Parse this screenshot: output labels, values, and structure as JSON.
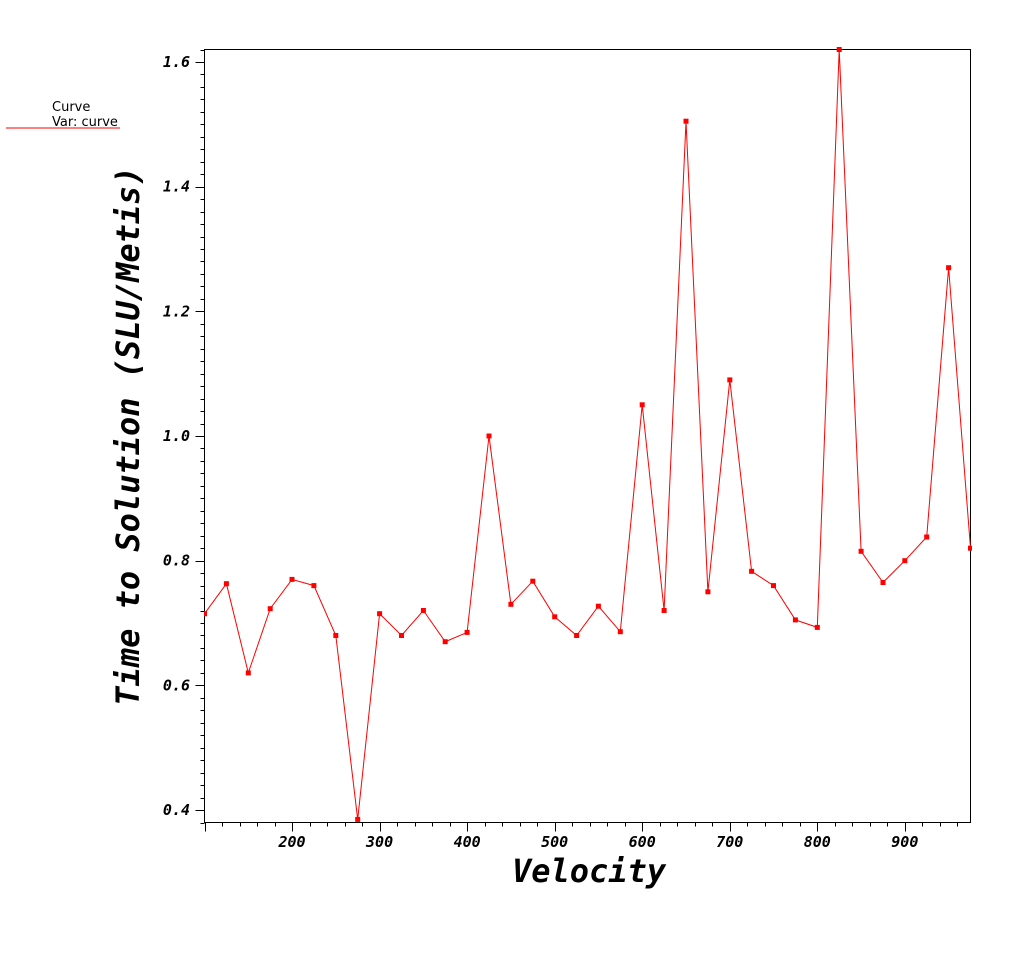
{
  "legend": {
    "title": "Curve",
    "var_label": "Var: curve",
    "line_color": "#ff0000"
  },
  "chart_data": {
    "type": "line",
    "xlabel": "Velocity",
    "ylabel": "Time to Solution (SLU/Metis)",
    "xlim": [
      100,
      975
    ],
    "ylim": [
      0.38,
      1.62
    ],
    "xticks_labeled": [
      "200",
      "300",
      "400",
      "500",
      "600",
      "700",
      "800",
      "900"
    ],
    "yticks_labeled": [
      "0.4",
      "0.6",
      "0.8",
      "1.0",
      "1.2",
      "1.4",
      "1.6"
    ],
    "grid": false,
    "legend_position": "top-left outside",
    "series": [
      {
        "name": "curve",
        "color": "#ff0000",
        "marker": "square",
        "x": [
          100,
          125,
          150,
          175,
          200,
          225,
          250,
          275,
          300,
          325,
          350,
          375,
          400,
          425,
          450,
          475,
          500,
          525,
          550,
          575,
          600,
          625,
          650,
          675,
          700,
          725,
          750,
          775,
          800,
          825,
          850,
          875,
          900,
          925,
          950,
          975
        ],
        "y": [
          0.715,
          0.763,
          0.62,
          0.723,
          0.77,
          0.76,
          0.68,
          0.385,
          0.715,
          0.68,
          0.72,
          0.67,
          0.685,
          1.0,
          0.73,
          0.767,
          0.71,
          0.68,
          0.727,
          0.686,
          1.05,
          0.72,
          1.505,
          0.75,
          1.09,
          0.783,
          0.76,
          0.705,
          0.693,
          1.62,
          0.815,
          0.765,
          0.8,
          0.838,
          1.27,
          0.82
        ]
      }
    ]
  }
}
